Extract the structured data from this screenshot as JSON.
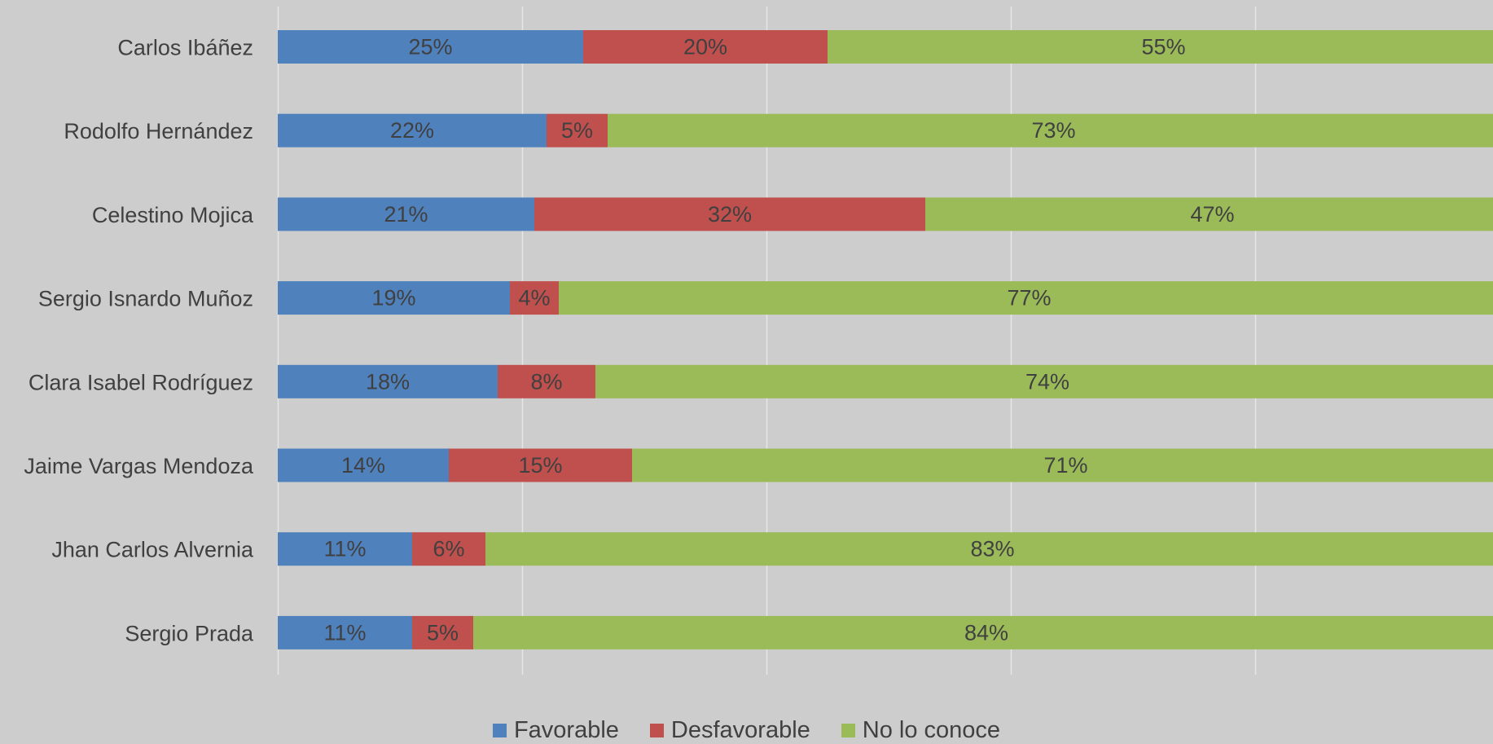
{
  "chart_data": {
    "type": "bar",
    "orientation": "horizontal",
    "stacked": true,
    "categories": [
      "Carlos Ibáñez",
      "Rodolfo Hernández",
      "Celestino Mojica",
      "Sergio Isnardo Muñoz",
      "Clara Isabel Rodríguez",
      "Jaime Vargas Mendoza",
      "Jhan Carlos Alvernia",
      "Sergio Prada"
    ],
    "series": [
      {
        "name": "Favorable",
        "color": "#4f81bd",
        "values": [
          25,
          22,
          21,
          19,
          18,
          14,
          11,
          11
        ]
      },
      {
        "name": "Desfavorable",
        "color": "#c0504d",
        "values": [
          20,
          5,
          32,
          4,
          8,
          15,
          6,
          5
        ]
      },
      {
        "name": "No lo conoce",
        "color": "#9bbb59",
        "values": [
          55,
          73,
          47,
          77,
          74,
          71,
          83,
          84
        ]
      }
    ],
    "data_labels": [
      [
        "25%",
        "22%",
        "21%",
        "19%",
        "18%",
        "14%",
        "11%",
        "11%"
      ],
      [
        "20%",
        "5%",
        "32%",
        "4%",
        "8%",
        "15%",
        "6%",
        "5%"
      ],
      [
        "55%",
        "73%",
        "47%",
        "77%",
        "74%",
        "71%",
        "83%",
        "84%"
      ]
    ],
    "xlim": [
      0,
      100
    ],
    "gridlines": true,
    "legend_position": "bottom",
    "background": "#cdcdcd",
    "gridline_color": "#e6e6e6",
    "text_color": "#404040"
  }
}
